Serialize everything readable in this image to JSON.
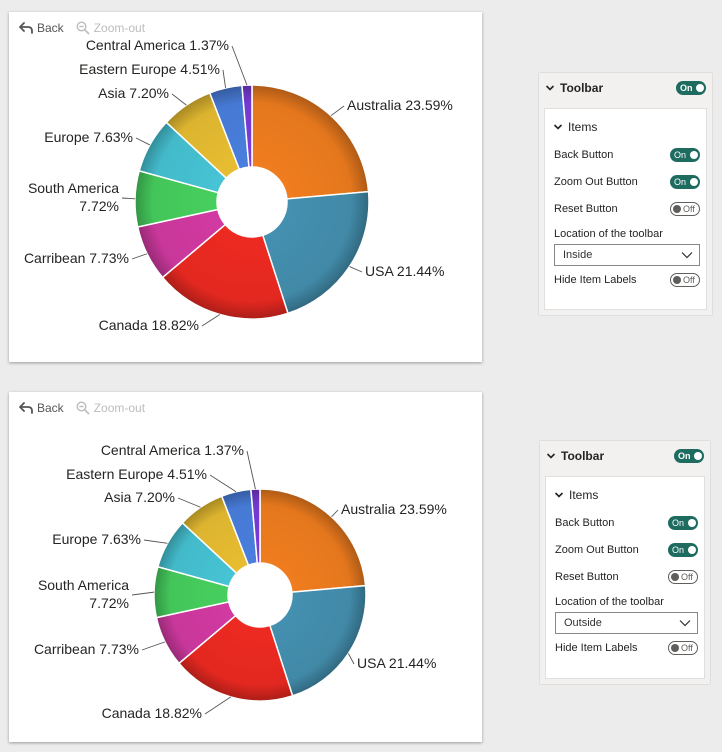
{
  "views": [
    {
      "id": "top",
      "toolbar": {
        "back_label": "Back",
        "zoom_out_label": "Zoom-out"
      },
      "chart_data": {
        "type": "pie",
        "donut": true,
        "categories": [
          "Australia",
          "USA",
          "Canada",
          "Carribean",
          "South America",
          "Europe",
          "Asia",
          "Eastern Europe",
          "Central America"
        ],
        "values": [
          23.59,
          21.44,
          18.82,
          7.73,
          7.72,
          7.63,
          7.2,
          4.51,
          1.37
        ],
        "labels": [
          "Australia 23.59%",
          "USA 21.44%",
          "Canada 18.82%",
          "Carribean 7.73%",
          "South America 7.72%",
          "Europe 7.63%",
          "Asia 7.20%",
          "Eastern Europe 4.51%",
          "Central America 1.37%"
        ],
        "colors": [
          "#f07d1f",
          "#4490b0",
          "#ee2a22",
          "#d23aa2",
          "#47cf5e",
          "#46c4d5",
          "#e8bd31",
          "#4a7fde",
          "#7a3cd8"
        ]
      },
      "panel": {
        "title": "Toolbar",
        "title_toggle": "On",
        "items_title": "Items",
        "rows": [
          {
            "label": "Back Button",
            "state": "On"
          },
          {
            "label": "Zoom Out Button",
            "state": "On"
          },
          {
            "label": "Reset Button",
            "state": "Off"
          }
        ],
        "location_label": "Location of the toolbar",
        "location_value": "Inside",
        "hide_labels": {
          "label": "Hide Item Labels",
          "state": "Off"
        }
      }
    },
    {
      "id": "bottom",
      "toolbar": {
        "back_label": "Back",
        "zoom_out_label": "Zoom-out"
      },
      "chart_data": {
        "type": "pie",
        "donut": true,
        "categories": [
          "Australia",
          "USA",
          "Canada",
          "Carribean",
          "South America",
          "Europe",
          "Asia",
          "Eastern Europe",
          "Central America"
        ],
        "values": [
          23.59,
          21.44,
          18.82,
          7.73,
          7.72,
          7.63,
          7.2,
          4.51,
          1.37
        ],
        "labels": [
          "Australia 23.59%",
          "USA 21.44%",
          "Canada 18.82%",
          "Carribean 7.73%",
          "South America 7.72%",
          "Europe 7.63%",
          "Asia 7.20%",
          "Eastern Europe 4.51%",
          "Central America 1.37%"
        ],
        "colors": [
          "#f07d1f",
          "#4490b0",
          "#ee2a22",
          "#d23aa2",
          "#47cf5e",
          "#46c4d5",
          "#e8bd31",
          "#4a7fde",
          "#7a3cd8"
        ]
      },
      "panel": {
        "title": "Toolbar",
        "title_toggle": "On",
        "items_title": "Items",
        "rows": [
          {
            "label": "Back Button",
            "state": "On"
          },
          {
            "label": "Zoom Out Button",
            "state": "On"
          },
          {
            "label": "Reset Button",
            "state": "Off"
          }
        ],
        "location_label": "Location of the toolbar",
        "location_value": "Outside",
        "hide_labels": {
          "label": "Hide Item Labels",
          "state": "Off"
        }
      }
    }
  ]
}
